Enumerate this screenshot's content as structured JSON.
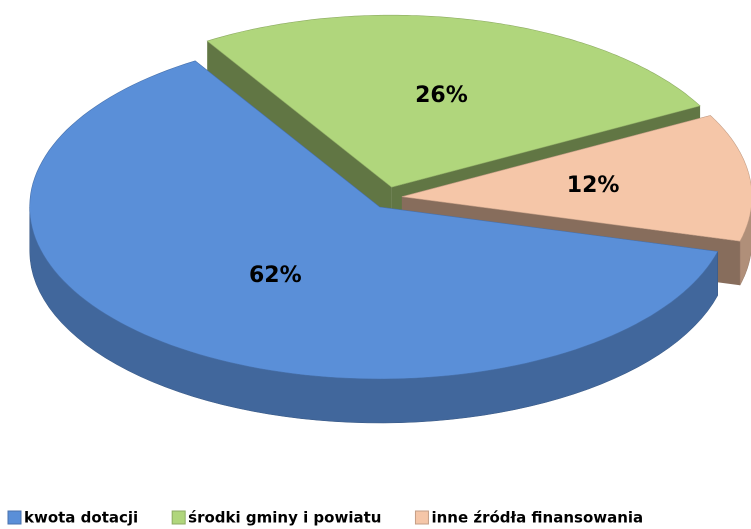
{
  "chart_data": {
    "type": "pie",
    "categories": [
      "kwota dotacji",
      "środki gminy i powiatu",
      "inne źródła finansowania"
    ],
    "values": [
      62,
      26,
      12
    ],
    "value_labels": [
      "62%",
      "26%",
      "12%"
    ],
    "colors": [
      "#5a8fd8",
      "#b0d67c",
      "#f5c6a8"
    ],
    "legend": "bottom"
  }
}
